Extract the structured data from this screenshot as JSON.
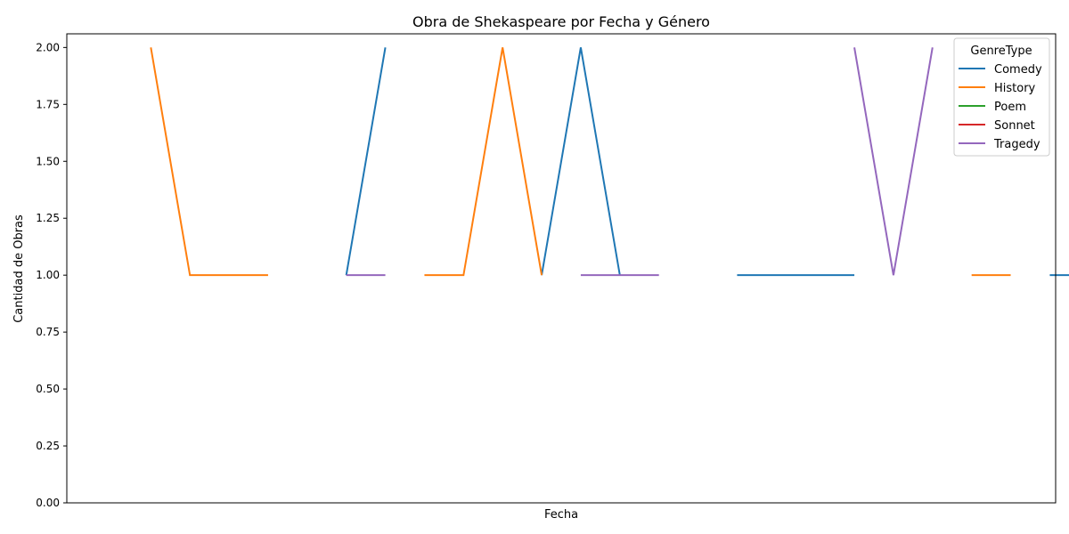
{
  "chart_data": {
    "type": "line",
    "title": "Obra de Shekaspeare por Fecha y Género",
    "xlabel": "Fecha",
    "ylabel": "Cantidad de Obras",
    "ylim": [
      0,
      2.06
    ],
    "yticks": [
      "0.00",
      "0.25",
      "0.50",
      "0.75",
      "1.00",
      "1.25",
      "1.50",
      "1.75",
      "2.00"
    ],
    "grid": false,
    "legend": {
      "title": "GenreType",
      "placement": "top-right"
    },
    "x": [
      0,
      1,
      2,
      3,
      4,
      5,
      6,
      7,
      8,
      9,
      10,
      11,
      12,
      13,
      14,
      15,
      16,
      17,
      18,
      19,
      20,
      21,
      22,
      23,
      24
    ],
    "xlim": [
      -2.15,
      23.15
    ],
    "series": [
      {
        "name": "Comedy",
        "color": "#1f77b4",
        "values": [
          null,
          null,
          null,
          null,
          null,
          1,
          2,
          null,
          null,
          null,
          1,
          2,
          1,
          null,
          null,
          1,
          1,
          1,
          1,
          null,
          null,
          null,
          null,
          1,
          1
        ]
      },
      {
        "name": "History",
        "color": "#ff7f0e",
        "values": [
          2,
          1,
          1,
          1,
          null,
          null,
          null,
          1,
          1,
          2,
          1,
          null,
          null,
          null,
          null,
          null,
          null,
          null,
          null,
          null,
          null,
          1,
          1,
          null,
          null
        ]
      },
      {
        "name": "Poem",
        "color": "#2ca02c",
        "values": [
          null,
          null,
          null,
          null,
          null,
          null,
          null,
          null,
          null,
          null,
          null,
          null,
          null,
          null,
          null,
          null,
          null,
          null,
          null,
          null,
          null,
          null,
          null,
          null,
          null
        ]
      },
      {
        "name": "Sonnet",
        "color": "#d62728",
        "values": [
          null,
          null,
          null,
          null,
          null,
          null,
          null,
          null,
          null,
          null,
          null,
          null,
          null,
          null,
          null,
          null,
          null,
          null,
          null,
          null,
          null,
          null,
          null,
          null,
          null
        ]
      },
      {
        "name": "Tragedy",
        "color": "#9467bd",
        "values": [
          null,
          null,
          null,
          null,
          null,
          1,
          1,
          null,
          null,
          null,
          null,
          1,
          1,
          1,
          null,
          null,
          null,
          null,
          2,
          1,
          2,
          null,
          null,
          null,
          null
        ]
      }
    ]
  }
}
